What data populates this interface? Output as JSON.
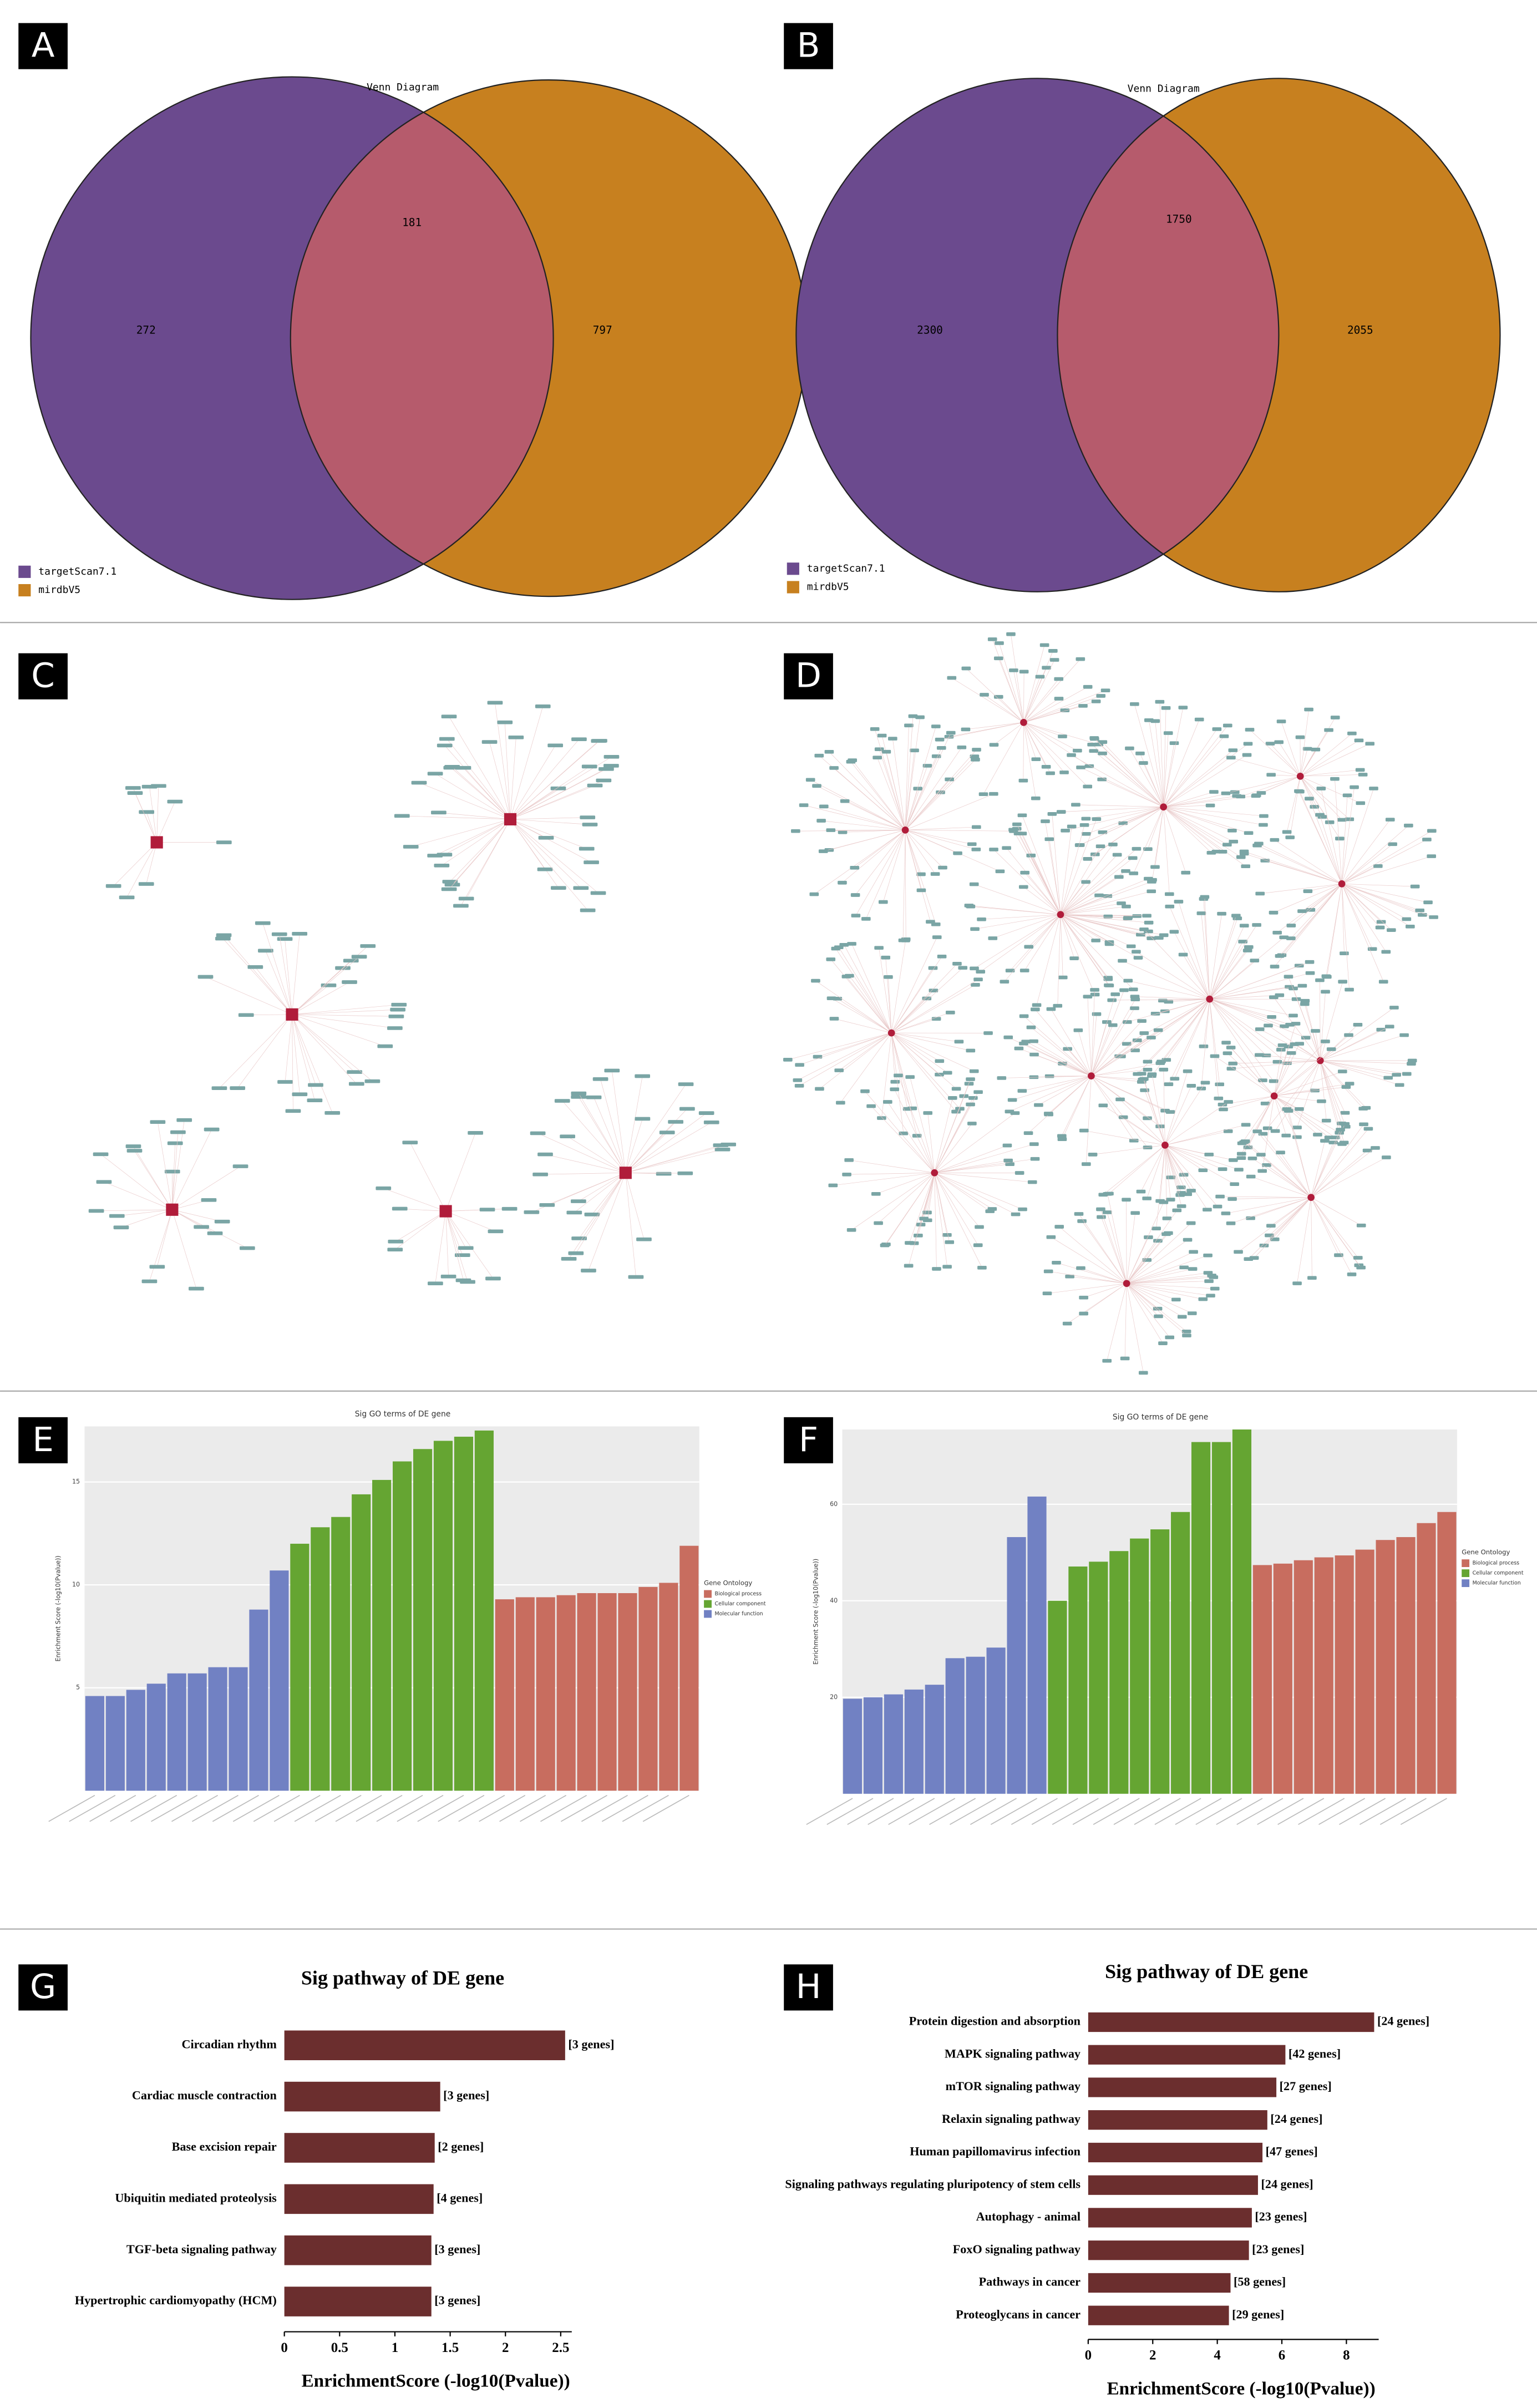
{
  "chart_data": [
    {
      "panel": "A",
      "type": "venn",
      "title": "Venn Diagram",
      "series": [
        {
          "name": "targetScan7.1",
          "color": "#6b4a8e"
        },
        {
          "name": "mirdbV5",
          "color": "#c7801f"
        }
      ],
      "intersection_color": "#b65b6c",
      "values": [
        272,
        181,
        797
      ]
    },
    {
      "panel": "B",
      "type": "venn",
      "title": "Venn Diagram",
      "series": [
        {
          "name": "targetScan7.1",
          "color": "#6b4a8e"
        },
        {
          "name": "mirdbV5",
          "color": "#c7801f"
        }
      ],
      "intersection_color": "#b65b6c",
      "values": [
        2300,
        1750,
        2055
      ]
    },
    {
      "panel": "C",
      "type": "network"
    },
    {
      "panel": "D",
      "type": "network"
    },
    {
      "panel": "E",
      "type": "bar",
      "title": "Sig GO terms of DE gene",
      "y_label": "Enrichment Score (-log10(Pvalue))",
      "legend_title": "Gene Ontology",
      "series": [
        {
          "name": "Biological process",
          "color": "#c86d5f",
          "values": [
            9.3,
            9.4,
            9.4,
            9.5,
            9.6,
            9.6,
            9.6,
            9.9,
            10.1,
            11.9
          ]
        },
        {
          "name": "Cellular component",
          "color": "#65a532",
          "values": [
            12.0,
            12.8,
            13.3,
            14.4,
            15.1,
            16.0,
            16.6,
            17.0,
            17.2,
            17.5
          ]
        },
        {
          "name": "Molecular function",
          "color": "#7181c3",
          "values": [
            4.6,
            4.6,
            4.9,
            5.2,
            5.7,
            5.7,
            6.0,
            6.0,
            8.8,
            10.7
          ]
        }
      ],
      "ylim": [
        0,
        17.7
      ],
      "yticks": [
        5,
        10,
        15
      ],
      "grid": true
    },
    {
      "panel": "F",
      "type": "bar",
      "title": "Sig GO terms of DE gene",
      "y_label": "Enrichment Score (-log10(Pvalue))",
      "legend_title": "Gene Ontology",
      "series": [
        {
          "name": "Biological process",
          "color": "#c86d5f",
          "values": [
            47.4,
            47.7,
            48.4,
            49.0,
            49.4,
            50.6,
            52.6,
            53.2,
            56.1,
            58.4
          ]
        },
        {
          "name": "Cellular component",
          "color": "#65a532",
          "values": [
            40.0,
            47.1,
            48.1,
            50.3,
            52.9,
            54.8,
            58.4,
            72.9,
            72.9,
            75.5
          ]
        },
        {
          "name": "Molecular function",
          "color": "#7181c3",
          "values": [
            19.7,
            20.0,
            20.6,
            21.6,
            22.6,
            28.1,
            28.4,
            30.3,
            53.2,
            61.6
          ]
        }
      ],
      "ylim": [
        0,
        75.5
      ],
      "yticks": [
        20,
        40,
        60
      ],
      "grid": true
    },
    {
      "panel": "G",
      "type": "barh",
      "title": "Sig pathway of DE gene",
      "x_label": "EnrichmentScore (-log10(Pvalue))",
      "categories": [
        "Circadian rhythm",
        "Cardiac muscle contraction",
        "Base excision repair",
        "Ubiquitin mediated proteolysis",
        "TGF-beta signaling pathway",
        "Hypertrophic cardiomyopathy (HCM)"
      ],
      "values": [
        2.54,
        1.41,
        1.36,
        1.35,
        1.33,
        1.33
      ],
      "value_labels": [
        "[3 genes]",
        "[3 genes]",
        "[2 genes]",
        "[4 genes]",
        "[3 genes]",
        "[3 genes]"
      ],
      "color": "#6b2e2e",
      "xlim": [
        0,
        2.6
      ],
      "xticks": [
        0,
        0.5,
        1,
        1.5,
        2,
        2.5
      ]
    },
    {
      "panel": "H",
      "type": "barh",
      "title": "Sig pathway of DE gene",
      "x_label": "EnrichmentScore (-log10(Pvalue))",
      "categories": [
        "Protein digestion and absorption",
        "MAPK signaling pathway",
        "mTOR signaling pathway",
        "Relaxin signaling pathway",
        "Human papillomavirus infection",
        "Signaling pathways regulating pluripotency of stem cells",
        "Autophagy - animal",
        "FoxO signaling pathway",
        "Pathways in cancer",
        "Proteoglycans in cancer"
      ],
      "values": [
        8.86,
        6.11,
        5.83,
        5.55,
        5.4,
        5.26,
        5.07,
        4.98,
        4.41,
        4.36
      ],
      "value_labels": [
        "[24 genes]",
        "[42 genes]",
        "[27 genes]",
        "[24 genes]",
        "[47 genes]",
        "[24 genes]",
        "[23 genes]",
        "[23 genes]",
        "[58 genes]",
        "[29 genes]"
      ],
      "color": "#6b2e2e",
      "xlim": [
        0,
        9.0
      ],
      "xticks": [
        0,
        2,
        4,
        6,
        8
      ]
    }
  ]
}
